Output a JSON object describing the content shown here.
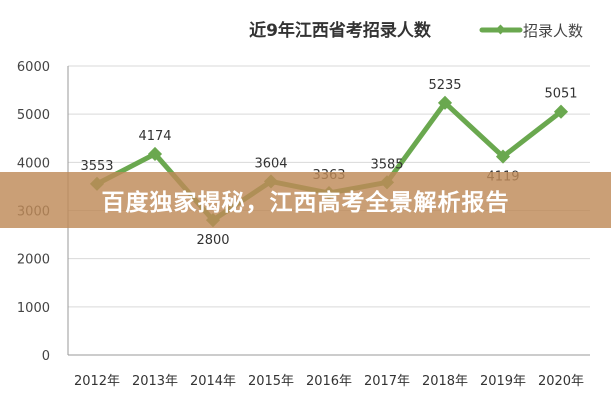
{
  "chart_data": {
    "type": "line",
    "title": "近9年江西省考招录人数",
    "categories": [
      "2012年",
      "2013年",
      "2014年",
      "2015年",
      "2016年",
      "2017年",
      "2018年",
      "2019年",
      "2020年"
    ],
    "series": [
      {
        "name": "招录人数",
        "values": [
          3553,
          4174,
          2800,
          3604,
          3363,
          3585,
          5235,
          4119,
          5051
        ],
        "color": "#6aa84f"
      }
    ],
    "data_labels": [
      "3553",
      "4174",
      "2800",
      "3604",
      "3363",
      "3585",
      "5235",
      "4119",
      "5051"
    ],
    "ylim": [
      0,
      6000
    ],
    "yticks": [
      "0",
      "1000",
      "2000",
      "3000",
      "4000",
      "5000",
      "6000"
    ],
    "grid": true,
    "legend_position": "top-right"
  },
  "overlay": {
    "banner_text": "百度独家揭秘，江西高考全景解析报告",
    "banner_color": "#be8a58"
  }
}
